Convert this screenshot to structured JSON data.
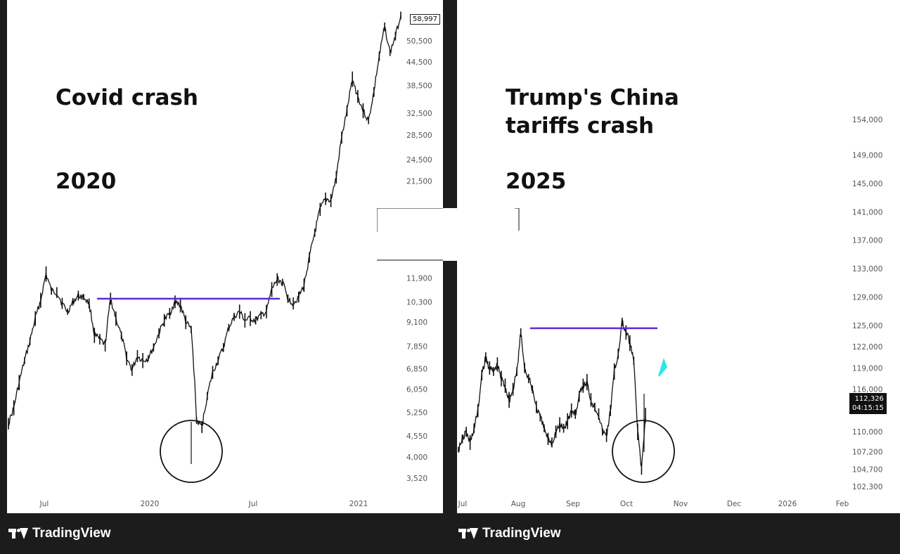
{
  "panels": [
    {
      "title_line1": "Covid crash",
      "title_line2": "",
      "year": "2020",
      "last_price": "58,997"
    },
    {
      "title_line1": "Trump's China",
      "title_line2": "tariffs crash",
      "year": "2025",
      "last_price": "112,326",
      "countdown": "04:15:15"
    }
  ],
  "footer": {
    "brand": "TradingView"
  },
  "colors": {
    "resistance_line": "#5b2bd8",
    "annotation_circle": "#111111",
    "candles": "#111111",
    "cyan_marker": "#2ee6e6"
  },
  "chart_data": [
    {
      "type": "line",
      "title": "Covid crash",
      "subtitle": "2020",
      "scale": "log",
      "ylim": [
        3300,
        60000
      ],
      "y_ticks": [
        "50,500",
        "44,500",
        "38,500",
        "32,500",
        "28,500",
        "24,500",
        "21,500",
        "11,900",
        "10,300",
        "9,100",
        "7,850",
        "6,850",
        "6,050",
        "5,250",
        "4,550",
        "4,000",
        "3,520"
      ],
      "x_ticks": [
        "Jul",
        "2020",
        "Jul",
        "2021"
      ],
      "series": [
        {
          "values": [
            4900,
            5400,
            6300,
            7200,
            8100,
            9300,
            10400,
            12200,
            11000,
            10900,
            10200,
            9700,
            10300,
            10700,
            10600,
            10200,
            8400,
            8200,
            7900,
            10500,
            9300,
            8400,
            7300,
            6800,
            7400,
            7200,
            7300,
            7800,
            8500,
            9200,
            9600,
            10300,
            10100,
            9100,
            8700,
            5000,
            4800,
            5800,
            6700,
            7200,
            7800,
            8800,
            9400,
            9700,
            9200,
            9300,
            9200,
            9500,
            9700,
            11100,
            11800,
            11600,
            10500,
            10200,
            10600,
            11400,
            13500,
            15700,
            18100,
            19300,
            19100,
            22000,
            28000,
            33000,
            40000,
            36000,
            33000,
            31000,
            37000,
            46000,
            55000,
            47000,
            52000,
            58997
          ]
        }
      ],
      "resistance_level": 10500,
      "annotation": "circle around the crash low"
    },
    {
      "type": "line",
      "title": "Trump's China tariffs crash",
      "subtitle": "2025",
      "ylim": [
        101500,
        156000
      ],
      "y_ticks": [
        "154,000",
        "149,000",
        "145,000",
        "141,000",
        "137,000",
        "133,000",
        "129,000",
        "125,000",
        "122,000",
        "119,000",
        "116,000",
        "110,000",
        "107,200",
        "104,700",
        "102,300"
      ],
      "x_ticks": [
        "Jul",
        "Aug",
        "Sep",
        "Oct",
        "Nov",
        "Dec",
        "2026",
        "Feb"
      ],
      "series": [
        {
          "values": [
            107500,
            109000,
            110000,
            108500,
            110500,
            113000,
            118000,
            120500,
            119000,
            118500,
            119500,
            117500,
            116500,
            114500,
            116000,
            118500,
            124000,
            119000,
            117500,
            116000,
            113500,
            112000,
            110500,
            109000,
            108500,
            110000,
            111000,
            110500,
            111500,
            113000,
            112500,
            115000,
            116500,
            117000,
            114500,
            113500,
            112500,
            110000,
            109500,
            113000,
            118500,
            121000,
            125500,
            124000,
            122500,
            120000,
            110000,
            104800,
            112326
          ]
        }
      ],
      "resistance_level": 124600,
      "annotation": "circle around the crash low"
    }
  ]
}
